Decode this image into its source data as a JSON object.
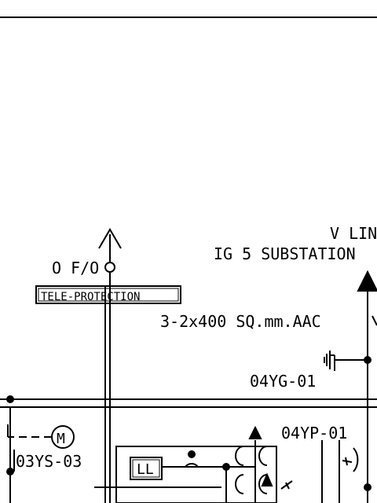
{
  "labels": {
    "line_title_1": "V LINE",
    "line_title_2": "IG 5 SUBSTATION",
    "fiber": "O F/O",
    "teleprotection": "TELE-PROTECTION",
    "conductor": "3-2x400 SQ.mm.AAC",
    "ground_switch": "04YG-01",
    "switch_p": "04YP-01",
    "motor_switch": "03YS-03",
    "motor": "M",
    "ll_box": "LL"
  }
}
